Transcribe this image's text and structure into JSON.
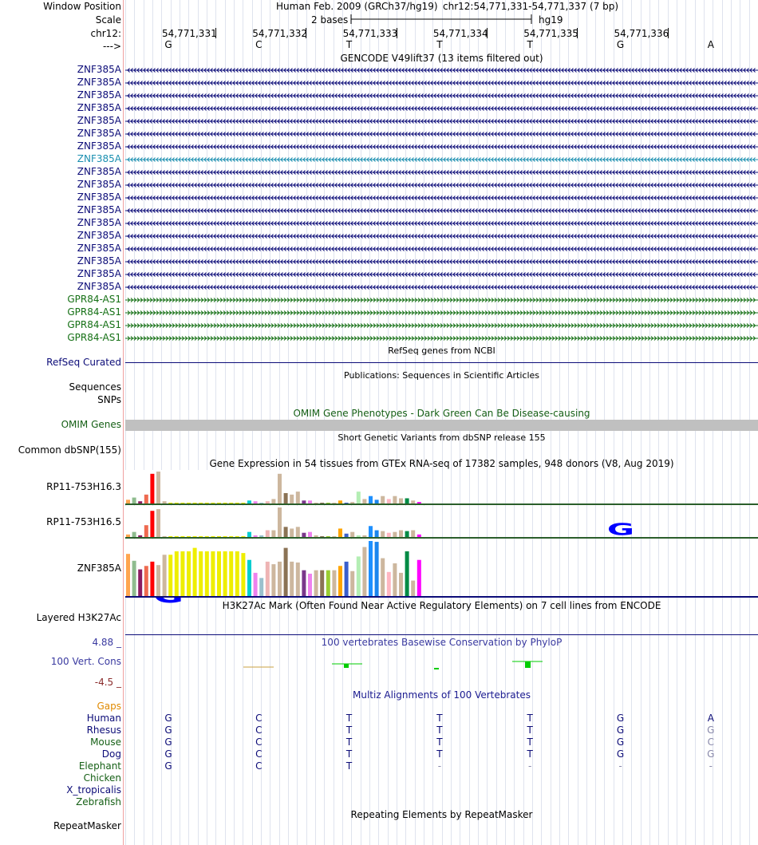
{
  "header": {
    "window_position_label": "Window Position",
    "scale_label": "Scale",
    "chrom_label": "chr12:",
    "strand_label": "--->",
    "assembly": "Human Feb. 2009 (GRCh37/hg19)",
    "position": "chr12:54,771,331-54,771,337 (7 bp)",
    "scale_text": "2 bases",
    "scale_db": "hg19",
    "ruler_ticks": [
      "54,771,331",
      "54,771,332",
      "54,771,333",
      "54,771,334",
      "54,771,335",
      "54,771,336"
    ],
    "bases": [
      "G",
      "C",
      "T",
      "T",
      "T",
      "G",
      "A"
    ]
  },
  "gencode": {
    "title": "GENCODE V49lift37 (13 items filtered out)",
    "rows": [
      {
        "label": "ZNF385A",
        "strand": "minus",
        "color": "#0c0c78"
      },
      {
        "label": "ZNF385A",
        "strand": "minus",
        "color": "#0c0c78"
      },
      {
        "label": "ZNF385A",
        "strand": "minus",
        "color": "#0c0c78"
      },
      {
        "label": "ZNF385A",
        "strand": "minus",
        "color": "#0c0c78"
      },
      {
        "label": "ZNF385A",
        "strand": "minus",
        "color": "#0c0c78"
      },
      {
        "label": "ZNF385A",
        "strand": "minus",
        "color": "#0c0c78"
      },
      {
        "label": "ZNF385A",
        "strand": "minus",
        "color": "#0c0c78"
      },
      {
        "label": "ZNF385A",
        "strand": "minus",
        "color": "#1a8fb0"
      },
      {
        "label": "ZNF385A",
        "strand": "minus",
        "color": "#0c0c78"
      },
      {
        "label": "ZNF385A",
        "strand": "minus",
        "color": "#0c0c78"
      },
      {
        "label": "ZNF385A",
        "strand": "minus",
        "color": "#0c0c78"
      },
      {
        "label": "ZNF385A",
        "strand": "minus",
        "color": "#0c0c78"
      },
      {
        "label": "ZNF385A",
        "strand": "minus",
        "color": "#0c0c78"
      },
      {
        "label": "ZNF385A",
        "strand": "minus",
        "color": "#0c0c78"
      },
      {
        "label": "ZNF385A",
        "strand": "minus",
        "color": "#0c0c78"
      },
      {
        "label": "ZNF385A",
        "strand": "minus",
        "color": "#0c0c78"
      },
      {
        "label": "ZNF385A",
        "strand": "minus",
        "color": "#0c0c78"
      },
      {
        "label": "ZNF385A",
        "strand": "minus",
        "color": "#0c0c78"
      },
      {
        "label": "GPR84-AS1",
        "strand": "plus",
        "color": "#157015"
      },
      {
        "label": "GPR84-AS1",
        "strand": "plus",
        "color": "#157015"
      },
      {
        "label": "GPR84-AS1",
        "strand": "plus",
        "color": "#157015"
      },
      {
        "label": "GPR84-AS1",
        "strand": "plus",
        "color": "#157015"
      }
    ]
  },
  "refseq": {
    "title": "RefSeq genes from NCBI",
    "label": "RefSeq Curated"
  },
  "publications": {
    "title": "Publications: Sequences in Scientific Articles",
    "label_sequences": "Sequences",
    "label_snps": "SNPs"
  },
  "omim": {
    "title": "OMIM Gene Phenotypes - Dark Green Can Be Disease-causing",
    "label": "OMIM Genes"
  },
  "dbsnp": {
    "title": "Short Genetic Variants from dbSNP release 155",
    "label": "Common dbSNP(155)"
  },
  "gtex": {
    "title": "Gene Expression in 54 tissues from GTEx RNA-seq of 17382 samples, 948 donors (V8, Aug 2019)",
    "colors": [
      "#FFA54F",
      "#8FBC8F",
      "#8B1C62",
      "#EE6A50",
      "#FF0000",
      "#CDB79E",
      "#CDB79E",
      "#EEEE00",
      "#EEEE00",
      "#EEEE00",
      "#EEEE00",
      "#EEEE00",
      "#EEEE00",
      "#EEEE00",
      "#EEEE00",
      "#EEEE00",
      "#EEEE00",
      "#EEEE00",
      "#EEEE00",
      "#EEEE00",
      "#00CED1",
      "#EE82EE",
      "#9AC0CD",
      "#EEB4B4",
      "#CDB79E",
      "#CDB79E",
      "#8B7355",
      "#CDB79E",
      "#CDB79E",
      "#7A378B",
      "#EE82EE",
      "#CDB79E",
      "#8B7355",
      "#9ACD32",
      "#CDB79E",
      "#FFA500",
      "#3A5FCD",
      "#CDB79E",
      "#B4EEB4",
      "#CDB79E",
      "#1E90FF",
      "#1C86EE",
      "#CDB79E",
      "#FFB6C1",
      "#CDB79E",
      "#CDB79E",
      "#008B45",
      "#CDB79E",
      "#FF00FF"
    ],
    "genes": [
      {
        "label": "RP11-753H16.3",
        "values": [
          5,
          8,
          3,
          12,
          40,
          43,
          3,
          1,
          1,
          1,
          1,
          1,
          1,
          1,
          1,
          1,
          1,
          1,
          1,
          1,
          4,
          3,
          1,
          3,
          6,
          40,
          14,
          12,
          16,
          4,
          4,
          1,
          1,
          1,
          1,
          4,
          1,
          2,
          16,
          6,
          10,
          5,
          10,
          6,
          10,
          7,
          7,
          4,
          2
        ]
      },
      {
        "label": "RP11-753H16.5",
        "values": [
          3,
          6,
          2,
          14,
          31,
          33,
          1,
          1,
          1,
          1,
          1,
          1,
          1,
          1,
          1,
          1,
          1,
          1,
          1,
          1,
          6,
          2,
          2,
          8,
          8,
          35,
          12,
          10,
          12,
          5,
          6,
          2,
          1,
          1,
          1,
          10,
          4,
          6,
          2,
          2,
          13,
          8,
          7,
          5,
          6,
          8,
          7,
          8,
          3
        ]
      },
      {
        "label": "ZNF385A",
        "values": [
          49,
          41,
          31,
          35,
          40,
          36,
          48,
          48,
          52,
          52,
          52,
          56,
          52,
          52,
          52,
          52,
          52,
          52,
          52,
          50,
          42,
          27,
          21,
          40,
          37,
          40,
          56,
          40,
          39,
          30,
          26,
          30,
          30,
          30,
          30,
          35,
          40,
          29,
          46,
          57,
          64,
          63,
          44,
          28,
          38,
          27,
          52,
          18,
          42
        ]
      }
    ]
  },
  "h3k27ac": {
    "title": "H3K27Ac Mark (Often Found Near Active Regulatory Elements) on 7 cell lines from ENCODE",
    "label": "Layered H3K27Ac"
  },
  "phylop": {
    "title": "100 vertebrates Basewise Conservation by PhyloP",
    "label": "100 Vert. Cons",
    "max": "4.88 _",
    "min": "-4.5 _"
  },
  "multiz": {
    "title": "Multiz Alignments of 100 Vertebrates",
    "gaps_label": "Gaps",
    "species": [
      {
        "name": "Human",
        "bases": [
          "G",
          "C",
          "T",
          "T",
          "T",
          "G",
          "A"
        ],
        "color": "#0c0c78"
      },
      {
        "name": "Rhesus",
        "bases": [
          "G",
          "C",
          "T",
          "T",
          "T",
          "G",
          "G"
        ],
        "color": "#0c0c78"
      },
      {
        "name": "Mouse",
        "bases": [
          "G",
          "C",
          "T",
          "T",
          "T",
          "G",
          "C"
        ],
        "color": "#155f15"
      },
      {
        "name": "Dog",
        "bases": [
          "G",
          "C",
          "T",
          "T",
          "T",
          "G",
          "G"
        ],
        "color": "#0c0c78"
      },
      {
        "name": "Elephant",
        "bases": [
          "G",
          "C",
          "T",
          "-",
          "-",
          "-",
          "-"
        ],
        "color": "#155f15"
      },
      {
        "name": "Chicken",
        "bases": [
          "",
          "",
          "",
          "",
          "",
          "",
          ""
        ],
        "color": "#155f15"
      },
      {
        "name": "X_tropicalis",
        "bases": [
          "",
          "",
          "",
          "",
          "",
          "",
          ""
        ],
        "color": "#0c0c78"
      },
      {
        "name": "Zebrafish",
        "bases": [
          "",
          "",
          "",
          "",
          "",
          "",
          ""
        ],
        "color": "#155f15"
      }
    ]
  },
  "repeatmasker": {
    "title": "Repeating Elements by RepeatMasker",
    "label": "RepeatMasker"
  }
}
